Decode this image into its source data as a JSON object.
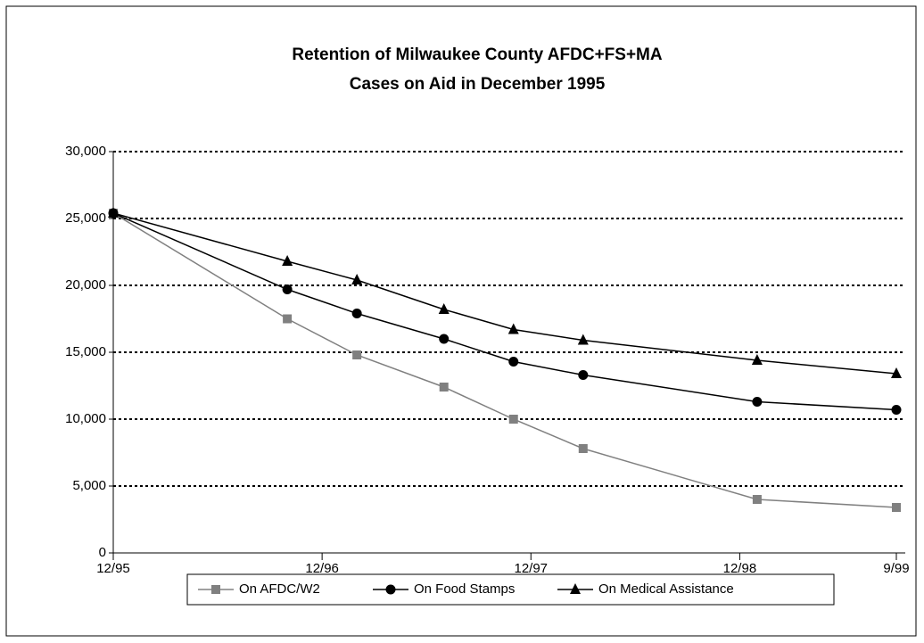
{
  "chart_data": {
    "type": "line",
    "title": "Retention of Milwaukee County AFDC+FS+MA",
    "subtitle": "Cases on Aid in December 1995",
    "x": [
      "1995-12",
      "1996-10",
      "1997-02",
      "1997-07",
      "1997-11",
      "1998-03",
      "1999-01",
      "1999-09"
    ],
    "series": [
      {
        "name": "On AFDC/W2",
        "color": "#808080",
        "marker": "square",
        "values": [
          25400,
          17500,
          14800,
          12400,
          10000,
          7800,
          4000,
          3400
        ]
      },
      {
        "name": "On Food Stamps",
        "color": "#000000",
        "marker": "circle",
        "values": [
          25400,
          19700,
          17900,
          16000,
          14300,
          13300,
          11300,
          10700
        ]
      },
      {
        "name": "On Medical Assistance",
        "color": "#000000",
        "marker": "triangle",
        "values": [
          25400,
          21800,
          20400,
          18200,
          16700,
          15900,
          14400,
          13400
        ]
      }
    ],
    "xlim": [
      "1995-12",
      "1999-09"
    ],
    "xticks": [
      {
        "value": "1995-12",
        "label": "12/95"
      },
      {
        "value": "1996-12",
        "label": "12/96"
      },
      {
        "value": "1997-12",
        "label": "12/97"
      },
      {
        "value": "1998-12",
        "label": "12/98"
      },
      {
        "value": "1999-09",
        "label": "9/99"
      }
    ],
    "ylim": [
      0,
      30000
    ],
    "yticks": [
      0,
      {
        "value": 5000,
        "label": "5,000"
      },
      {
        "value": 10000,
        "label": "10,000"
      },
      {
        "value": 15000,
        "label": "15,000"
      },
      {
        "value": 20000,
        "label": "20,000"
      },
      {
        "value": 25000,
        "label": "25,000"
      },
      {
        "value": 30000,
        "label": "30,000"
      }
    ],
    "grid": true,
    "legend": "bottom"
  }
}
